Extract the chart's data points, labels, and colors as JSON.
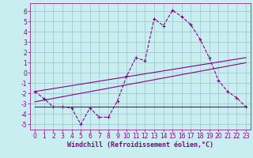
{
  "xlabel": "Windchill (Refroidissement éolien,°C)",
  "background_color": "#c8eef0",
  "grid_color": "#9ec0d0",
  "line_color": "#880088",
  "xlim": [
    -0.5,
    23.5
  ],
  "ylim": [
    -5.5,
    6.8
  ],
  "xticks": [
    0,
    1,
    2,
    3,
    4,
    5,
    6,
    7,
    8,
    9,
    10,
    11,
    12,
    13,
    14,
    15,
    16,
    17,
    18,
    19,
    20,
    21,
    22,
    23
  ],
  "yticks": [
    -5,
    -4,
    -3,
    -2,
    -1,
    0,
    1,
    2,
    3,
    4,
    5,
    6
  ],
  "line1_x": [
    0,
    1,
    2,
    3,
    4,
    5,
    6,
    7,
    8,
    9,
    10,
    11,
    12,
    13,
    14,
    15,
    16,
    17,
    18,
    19,
    20,
    21,
    22,
    23
  ],
  "line1_y": [
    -1.8,
    -2.5,
    -3.3,
    -3.3,
    -3.4,
    -5.0,
    -3.4,
    -4.3,
    -4.3,
    -2.7,
    -0.3,
    1.5,
    1.2,
    5.3,
    4.6,
    6.1,
    5.5,
    4.7,
    3.3,
    1.5,
    -0.7,
    -1.8,
    -2.4,
    -3.3
  ],
  "line2_x": [
    0,
    23
  ],
  "line2_y": [
    -3.3,
    -3.3
  ],
  "line3_x": [
    0,
    23
  ],
  "line3_y": [
    -2.8,
    1.0
  ],
  "line4_x": [
    0,
    23
  ],
  "line4_y": [
    -1.8,
    1.5
  ],
  "font_size_label": 6,
  "font_size_tick": 5.5,
  "tick_color": "#880088",
  "label_color": "#880088",
  "spine_color": "#880088"
}
